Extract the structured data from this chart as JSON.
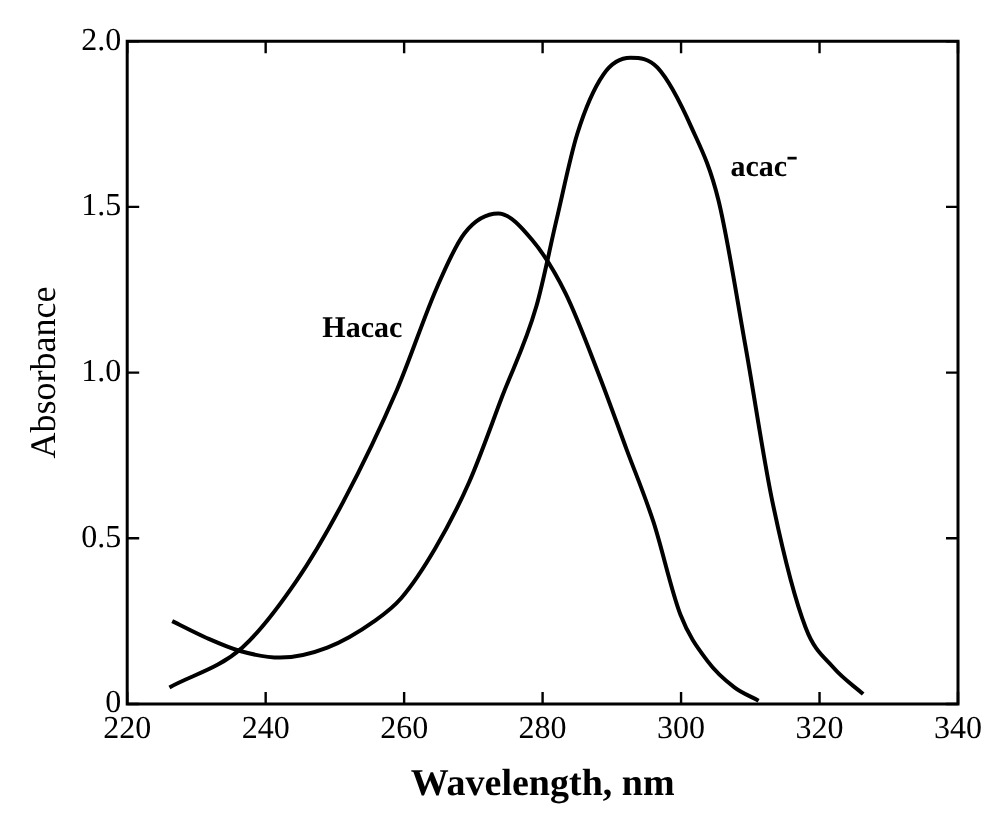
{
  "chart_data": {
    "type": "line",
    "xlabel": "Wavelength, nm",
    "ylabel": "Absorbance",
    "series": [
      {
        "name": "Hacac",
        "color": "#000000",
        "x": [
          226.1,
          236.6,
          244.4,
          251.2,
          259,
          264.8,
          268.7,
          273.6,
          278.5,
          283.3,
          288.2,
          292.1,
          296,
          299.9,
          303.8,
          307.7,
          311.2
        ],
        "values": [
          0.05,
          0.17,
          0.37,
          0.61,
          0.95,
          1.26,
          1.42,
          1.48,
          1.4,
          1.24,
          0.99,
          0.77,
          0.55,
          0.27,
          0.13,
          0.05,
          0.01
        ]
      },
      {
        "name": "acac⁻",
        "color": "#000000",
        "x": [
          226.5,
          231.4,
          236.3,
          242.1,
          248.9,
          255.7,
          259.6,
          264.5,
          269.4,
          274.2,
          279.1,
          282,
          285,
          288.8,
          292.7,
          296.6,
          301.5,
          305.4,
          309.3,
          313.2,
          318,
          322,
          326.3
        ],
        "values": [
          0.25,
          0.2,
          0.16,
          0.14,
          0.17,
          0.25,
          0.32,
          0.47,
          0.67,
          0.93,
          1.2,
          1.46,
          1.72,
          1.9,
          1.95,
          1.92,
          1.74,
          1.52,
          1.08,
          0.61,
          0.23,
          0.11,
          0.03
        ]
      }
    ],
    "xlim": [
      220,
      340
    ],
    "xticks": [
      220,
      240,
      260,
      280,
      300,
      320,
      340
    ],
    "ylim": [
      0,
      2.0
    ],
    "yticks": [
      0,
      {
        "value": 0.5,
        "label": "0.5"
      },
      {
        "value": 1,
        "label": "1.0"
      },
      {
        "value": 1.5,
        "label": "1.5"
      },
      {
        "value": 2,
        "label": "2.0"
      }
    ],
    "grid": false,
    "legend": false,
    "marker": "none",
    "line_style": "solid"
  }
}
